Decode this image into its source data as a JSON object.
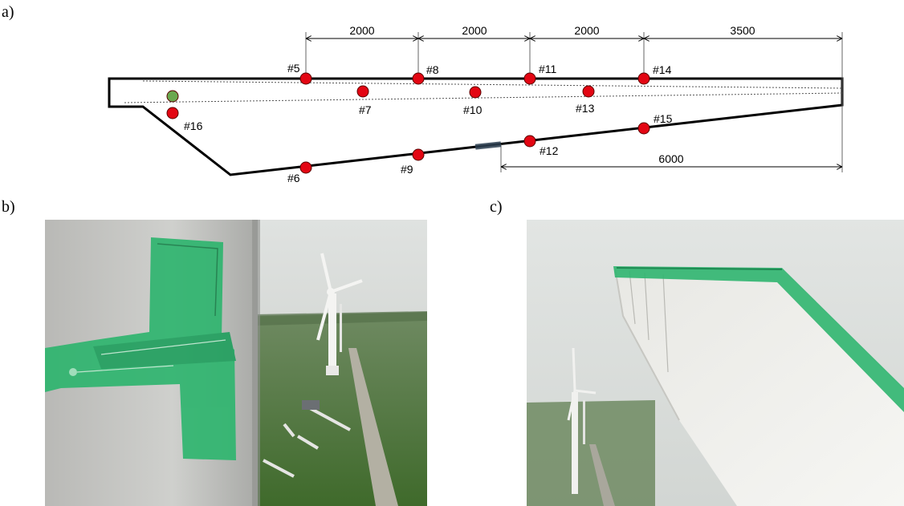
{
  "labels": {
    "a": "a)",
    "b": "b)",
    "c": "c)"
  },
  "dimensions": {
    "top": [
      "2000",
      "2000",
      "2000",
      "3500"
    ],
    "bottom": "6000"
  },
  "markers": [
    {
      "id": "#5",
      "color": "red"
    },
    {
      "id": "#6",
      "color": "red"
    },
    {
      "id": "#7",
      "color": "red"
    },
    {
      "id": "#8",
      "color": "red"
    },
    {
      "id": "#9",
      "color": "red"
    },
    {
      "id": "#10",
      "color": "red"
    },
    {
      "id": "#11",
      "color": "red"
    },
    {
      "id": "#12",
      "color": "red"
    },
    {
      "id": "#13",
      "color": "red"
    },
    {
      "id": "#14",
      "color": "red"
    },
    {
      "id": "#15",
      "color": "red"
    },
    {
      "id": "#16",
      "color": "red"
    },
    {
      "id": "",
      "color": "green"
    }
  ],
  "colors": {
    "red_marker": "#e30613",
    "green_marker": "#6aa84f",
    "tape": "#2fb56f",
    "blade": "#f2f2ef",
    "sky": "#d6d9d6",
    "grass": "#4f7a3a"
  }
}
